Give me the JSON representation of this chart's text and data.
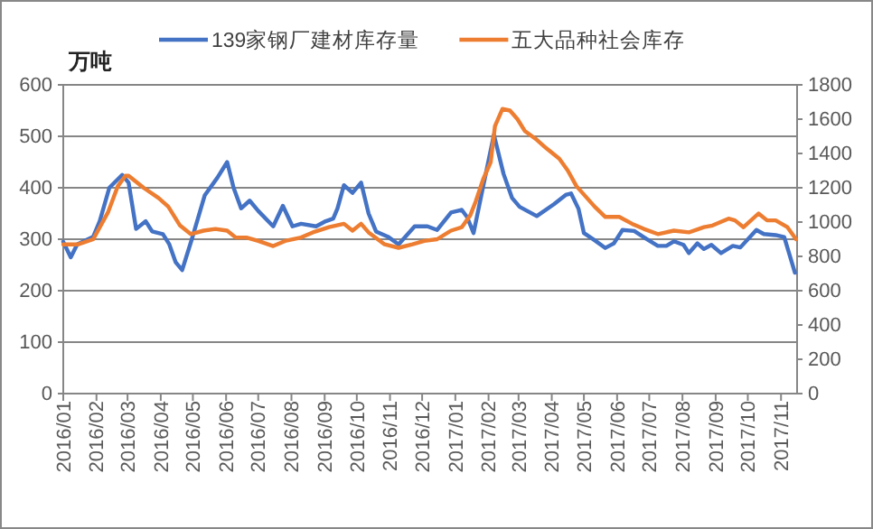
{
  "chart_data": {
    "type": "line",
    "ylabel": "万吨",
    "legend": "top",
    "grid": "y",
    "line_style": "solid",
    "marker": "none",
    "xlim": [
      "2016-01-01",
      "2017-11-16"
    ],
    "xticks": [
      {
        "value": "2016-01",
        "label": "2016/01"
      },
      {
        "value": "2016-02",
        "label": "2016/02"
      },
      {
        "value": "2016-03",
        "label": "2016/03"
      },
      {
        "value": "2016-04",
        "label": "2016/04"
      },
      {
        "value": "2016-05",
        "label": "2016/05"
      },
      {
        "value": "2016-06",
        "label": "2016/06"
      },
      {
        "value": "2016-07",
        "label": "2016/07"
      },
      {
        "value": "2016-08",
        "label": "2016/08"
      },
      {
        "value": "2016-09",
        "label": "2016/09"
      },
      {
        "value": "2016-10",
        "label": "2016/10"
      },
      {
        "value": "2016-11",
        "label": "2016/11"
      },
      {
        "value": "2016-12",
        "label": "2016/12"
      },
      {
        "value": "2017-01",
        "label": "2017/01"
      },
      {
        "value": "2017-02",
        "label": "2017/02"
      },
      {
        "value": "2017-03",
        "label": "2017/03"
      },
      {
        "value": "2017-04",
        "label": "2017/04"
      },
      {
        "value": "2017-05",
        "label": "2017/05"
      },
      {
        "value": "2017-06",
        "label": "2017/06"
      },
      {
        "value": "2017-07",
        "label": "2017/07"
      },
      {
        "value": "2017-08",
        "label": "2017/08"
      },
      {
        "value": "2017-09",
        "label": "2017/09"
      },
      {
        "value": "2017-10",
        "label": "2017/10"
      },
      {
        "value": "2017-11",
        "label": "2017/11"
      }
    ],
    "ylim": [
      0,
      600
    ],
    "yticks": [
      0,
      100,
      200,
      300,
      400,
      500,
      600
    ],
    "y2lim": [
      0,
      1800
    ],
    "y2ticks": [
      0,
      200,
      400,
      600,
      800,
      1000,
      1200,
      1400,
      1600,
      1800
    ],
    "series": [
      {
        "name": "139家钢厂建材库存量",
        "color": "#4472c4",
        "x": [
          "2016-01-01",
          "2016-01-08",
          "2016-01-14",
          "2016-01-29",
          "2016-02-04",
          "2016-02-13",
          "2016-02-25",
          "2016-03-02",
          "2016-03-09",
          "2016-03-18",
          "2016-03-24",
          "2016-04-03",
          "2016-04-09",
          "2016-04-15",
          "2016-04-21",
          "2016-04-30",
          "2016-05-12",
          "2016-05-24",
          "2016-06-02",
          "2016-06-08",
          "2016-06-15",
          "2016-06-23",
          "2016-07-01",
          "2016-07-15",
          "2016-07-24",
          "2016-08-02",
          "2016-08-10",
          "2016-08-24",
          "2016-09-02",
          "2016-09-09",
          "2016-09-13",
          "2016-09-19",
          "2016-09-27",
          "2016-10-05",
          "2016-10-12",
          "2016-10-19",
          "2016-10-30",
          "2016-11-09",
          "2016-11-24",
          "2016-12-06",
          "2016-12-15",
          "2016-12-28",
          "2017-01-07",
          "2017-01-12",
          "2017-01-18",
          "2017-01-27",
          "2017-02-06",
          "2017-02-15",
          "2017-02-23",
          "2017-03-02",
          "2017-03-18",
          "2017-04-03",
          "2017-04-14",
          "2017-04-19",
          "2017-04-26",
          "2017-05-01",
          "2017-05-11",
          "2017-05-21",
          "2017-05-29",
          "2017-06-06",
          "2017-06-17",
          "2017-06-28",
          "2017-07-09",
          "2017-07-17",
          "2017-07-24",
          "2017-08-02",
          "2017-08-07",
          "2017-08-15",
          "2017-08-21",
          "2017-08-28",
          "2017-09-06",
          "2017-09-17",
          "2017-09-24",
          "2017-10-09",
          "2017-10-16",
          "2017-10-27",
          "2017-11-04",
          "2017-11-14"
        ],
        "values": [
          295,
          265,
          290,
          305,
          335,
          400,
          425,
          410,
          320,
          335,
          315,
          310,
          290,
          255,
          240,
          300,
          385,
          420,
          450,
          400,
          360,
          375,
          355,
          325,
          365,
          325,
          330,
          325,
          335,
          340,
          360,
          405,
          390,
          410,
          350,
          315,
          305,
          290,
          325,
          325,
          318,
          352,
          357,
          343,
          312,
          403,
          503,
          427,
          380,
          363,
          345,
          368,
          386,
          389,
          359,
          312,
          298,
          283,
          292,
          318,
          316,
          301,
          287,
          287,
          296,
          289,
          273,
          292,
          281,
          289,
          273,
          287,
          284,
          318,
          310,
          308,
          304,
          235
        ]
      },
      {
        "name": "五大品种社会库存",
        "color": "#ed7d31",
        "axis": "y2",
        "x": [
          "2016-01-01",
          "2016-01-15",
          "2016-01-29",
          "2016-02-12",
          "2016-02-21",
          "2016-02-28",
          "2016-03-02",
          "2016-03-16",
          "2016-03-30",
          "2016-04-08",
          "2016-04-19",
          "2016-04-29",
          "2016-05-11",
          "2016-05-22",
          "2016-06-02",
          "2016-06-10",
          "2016-06-20",
          "2016-07-01",
          "2016-07-15",
          "2016-07-26",
          "2016-08-10",
          "2016-08-21",
          "2016-09-05",
          "2016-09-19",
          "2016-09-27",
          "2016-10-05",
          "2016-10-12",
          "2016-10-27",
          "2016-11-09",
          "2016-11-22",
          "2016-12-03",
          "2016-12-15",
          "2016-12-28",
          "2017-01-07",
          "2017-01-15",
          "2017-01-20",
          "2017-01-27",
          "2017-02-03",
          "2017-02-07",
          "2017-02-14",
          "2017-02-21",
          "2017-02-28",
          "2017-03-07",
          "2017-03-18",
          "2017-03-27",
          "2017-04-08",
          "2017-04-16",
          "2017-04-24",
          "2017-05-11",
          "2017-05-21",
          "2017-06-03",
          "2017-06-15",
          "2017-06-26",
          "2017-07-09",
          "2017-07-24",
          "2017-08-07",
          "2017-08-21",
          "2017-08-29",
          "2017-09-13",
          "2017-09-19",
          "2017-09-27",
          "2017-10-11",
          "2017-10-19",
          "2017-10-27",
          "2017-11-07",
          "2017-11-15"
        ],
        "values": [
          870,
          870,
          900,
          1060,
          1210,
          1270,
          1270,
          1200,
          1140,
          1090,
          980,
          930,
          950,
          960,
          950,
          910,
          910,
          890,
          860,
          890,
          910,
          940,
          970,
          990,
          950,
          990,
          940,
          870,
          850,
          870,
          890,
          900,
          950,
          970,
          1040,
          1120,
          1250,
          1350,
          1560,
          1660,
          1650,
          1600,
          1530,
          1480,
          1430,
          1370,
          1300,
          1210,
          1090,
          1030,
          1030,
          990,
          960,
          930,
          950,
          940,
          970,
          980,
          1020,
          1010,
          970,
          1050,
          1010,
          1010,
          970,
          900
        ]
      }
    ]
  }
}
